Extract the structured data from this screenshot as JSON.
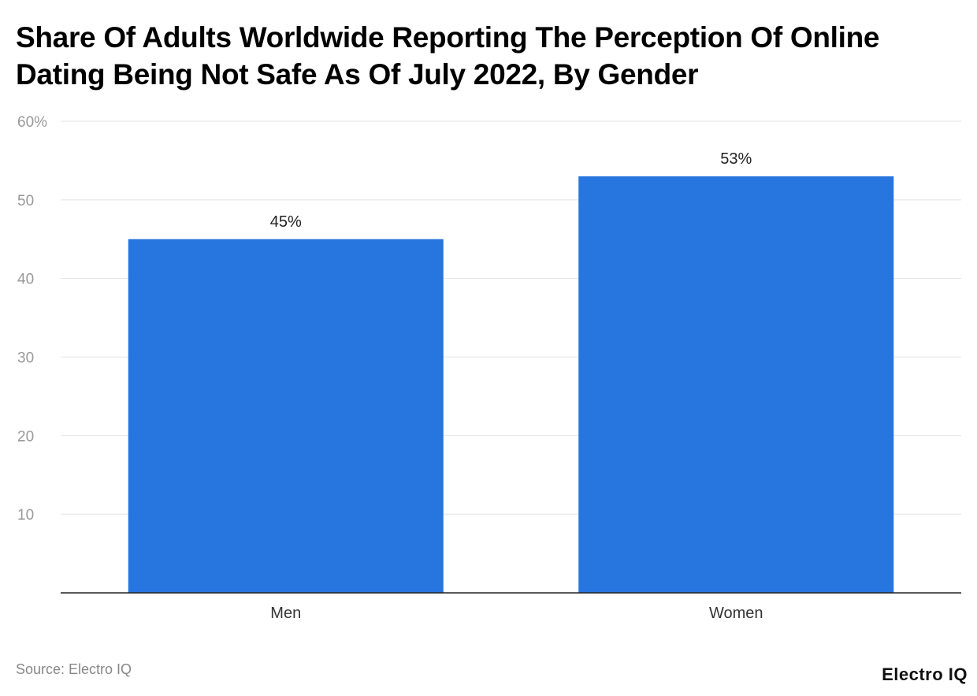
{
  "chart_data": {
    "type": "bar",
    "title": "Share Of Adults Worldwide Reporting The Perception Of Online Dating Being Not Safe As Of July 2022, By Gender",
    "categories": [
      "Men",
      "Women"
    ],
    "values": [
      45,
      53
    ],
    "data_labels": [
      "45%",
      "53%"
    ],
    "xlabel": "",
    "ylabel": "",
    "ylim": [
      0,
      60
    ],
    "yticks": [
      10,
      20,
      30,
      40,
      50,
      60
    ],
    "ytick_labels": [
      "10",
      "20",
      "30",
      "40",
      "50",
      "60%"
    ],
    "grid": true,
    "bar_color": "#2775DE"
  },
  "footer": {
    "source": "Source: Electro IQ",
    "logo": "Electro IQ"
  }
}
